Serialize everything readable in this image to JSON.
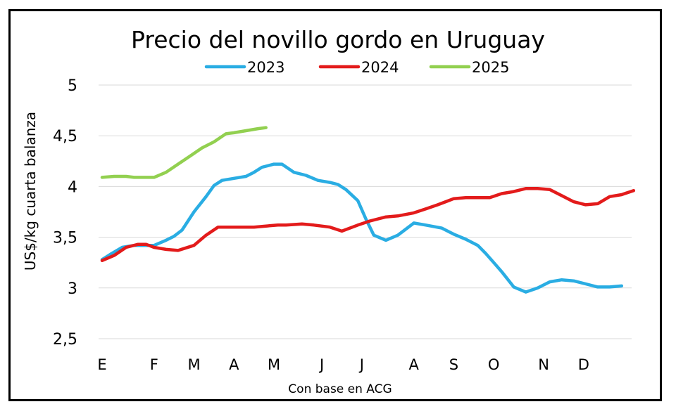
{
  "chart_data": {
    "type": "line",
    "title": "Precio del novillo gordo en Uruguay",
    "ylabel": "US$/kg cuarta balanza",
    "xlabel": "Con base en ACG",
    "ylim": [
      2.5,
      5
    ],
    "yticks": [
      "2,5",
      "3",
      "3,5",
      "4",
      "4,5",
      "5"
    ],
    "ytick_values": [
      2.5,
      3,
      3.5,
      4,
      4.5,
      5
    ],
    "month_labels": [
      "E",
      "F",
      "M",
      "A",
      "M",
      "J",
      "J",
      "A",
      "S",
      "O",
      "N",
      "D"
    ],
    "month_positions": [
      0,
      1.3,
      2.3,
      3.3,
      4.3,
      5.5,
      6.5,
      7.8,
      8.8,
      9.8,
      11.05,
      12.05
    ],
    "x_range": [
      0,
      13.25
    ],
    "grid": "horizontal",
    "legend_position": "top",
    "series": [
      {
        "name": "2023",
        "color": "#2AADE3",
        "x": [
          0,
          0.2,
          0.5,
          0.8,
          1.1,
          1.3,
          1.6,
          1.8,
          2.0,
          2.3,
          2.6,
          2.8,
          3.0,
          3.3,
          3.6,
          3.8,
          4.0,
          4.3,
          4.5,
          4.8,
          5.1,
          5.4,
          5.7,
          5.9,
          6.1,
          6.4,
          6.6,
          6.8,
          7.1,
          7.4,
          7.8,
          8.1,
          8.5,
          8.8,
          9.1,
          9.4,
          9.6,
          9.8,
          10.0,
          10.3,
          10.6,
          10.9,
          11.2,
          11.5,
          11.8,
          12.1,
          12.4,
          12.7,
          13.0
        ],
        "values": [
          3.28,
          3.33,
          3.4,
          3.42,
          3.42,
          3.42,
          3.47,
          3.51,
          3.57,
          3.75,
          3.9,
          4.01,
          4.06,
          4.08,
          4.1,
          4.14,
          4.19,
          4.22,
          4.22,
          4.14,
          4.11,
          4.06,
          4.04,
          4.02,
          3.97,
          3.86,
          3.68,
          3.52,
          3.47,
          3.52,
          3.64,
          3.62,
          3.59,
          3.53,
          3.48,
          3.42,
          3.34,
          3.25,
          3.16,
          3.01,
          2.96,
          3.0,
          3.06,
          3.08,
          3.07,
          3.04,
          3.01,
          3.01,
          3.02
        ]
      },
      {
        "name": "2024",
        "color": "#E31B1B",
        "x": [
          0,
          0.3,
          0.6,
          0.9,
          1.1,
          1.3,
          1.6,
          1.9,
          2.3,
          2.6,
          2.9,
          3.3,
          3.6,
          3.8,
          4.1,
          4.4,
          4.6,
          5.0,
          5.3,
          5.7,
          6.0,
          6.4,
          6.7,
          7.1,
          7.4,
          7.8,
          8.1,
          8.4,
          8.8,
          9.1,
          9.4,
          9.7,
          10.0,
          10.3,
          10.6,
          10.9,
          11.2,
          11.5,
          11.8,
          12.1,
          12.4,
          12.7,
          13.0,
          13.3
        ],
        "values": [
          3.27,
          3.32,
          3.4,
          3.43,
          3.43,
          3.4,
          3.38,
          3.37,
          3.42,
          3.52,
          3.6,
          3.6,
          3.6,
          3.6,
          3.61,
          3.62,
          3.62,
          3.63,
          3.62,
          3.6,
          3.56,
          3.62,
          3.66,
          3.7,
          3.71,
          3.74,
          3.78,
          3.82,
          3.88,
          3.89,
          3.89,
          3.89,
          3.93,
          3.95,
          3.98,
          3.98,
          3.97,
          3.91,
          3.85,
          3.82,
          3.83,
          3.9,
          3.92,
          3.96
        ]
      },
      {
        "name": "2025",
        "color": "#92D050",
        "x": [
          0,
          0.3,
          0.6,
          0.8,
          1.0,
          1.3,
          1.6,
          1.9,
          2.2,
          2.5,
          2.8,
          3.1,
          3.3,
          3.6,
          3.9,
          4.1
        ],
        "values": [
          4.09,
          4.1,
          4.1,
          4.09,
          4.09,
          4.09,
          4.14,
          4.22,
          4.3,
          4.38,
          4.44,
          4.52,
          4.53,
          4.55,
          4.57,
          4.58
        ]
      }
    ]
  }
}
